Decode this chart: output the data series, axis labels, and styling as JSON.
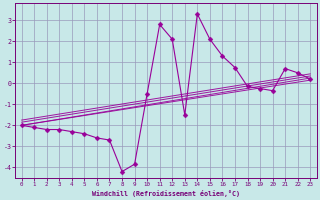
{
  "xlabel": "Windchill (Refroidissement éolien,°C)",
  "background_color": "#c8e8e8",
  "grid_color": "#9999bb",
  "line_color": "#990099",
  "markersize": 2.5,
  "xlim": [
    -0.5,
    23.5
  ],
  "ylim": [
    -4.5,
    3.8
  ],
  "yticks": [
    -4,
    -3,
    -2,
    -1,
    0,
    1,
    2,
    3
  ],
  "xticks": [
    0,
    1,
    2,
    3,
    4,
    5,
    6,
    7,
    8,
    9,
    10,
    11,
    12,
    13,
    14,
    15,
    16,
    17,
    18,
    19,
    20,
    21,
    22,
    23
  ],
  "main_series": [
    [
      0,
      -2.0
    ],
    [
      1,
      -2.1
    ],
    [
      2,
      -2.2
    ],
    [
      3,
      -2.2
    ],
    [
      4,
      -2.3
    ],
    [
      5,
      -2.4
    ],
    [
      6,
      -2.6
    ],
    [
      7,
      -2.7
    ],
    [
      8,
      -4.2
    ],
    [
      9,
      -3.85
    ],
    [
      10,
      -0.5
    ],
    [
      11,
      2.8
    ],
    [
      12,
      2.1
    ],
    [
      13,
      -1.5
    ],
    [
      14,
      3.3
    ],
    [
      15,
      2.1
    ],
    [
      16,
      1.3
    ],
    [
      17,
      0.75
    ],
    [
      18,
      -0.15
    ],
    [
      19,
      -0.25
    ],
    [
      20,
      -0.35
    ],
    [
      21,
      0.7
    ],
    [
      22,
      0.5
    ],
    [
      23,
      0.2
    ]
  ],
  "trend_lines": [
    {
      "x0": 0,
      "y0": -2.0,
      "x1": 23,
      "y1": 0.15
    },
    {
      "x0": 0,
      "y0": -2.0,
      "x1": 23,
      "y1": 0.25
    },
    {
      "x0": 0,
      "y0": -1.85,
      "x1": 23,
      "y1": 0.35
    },
    {
      "x0": 0,
      "y0": -1.75,
      "x1": 23,
      "y1": 0.45
    }
  ]
}
